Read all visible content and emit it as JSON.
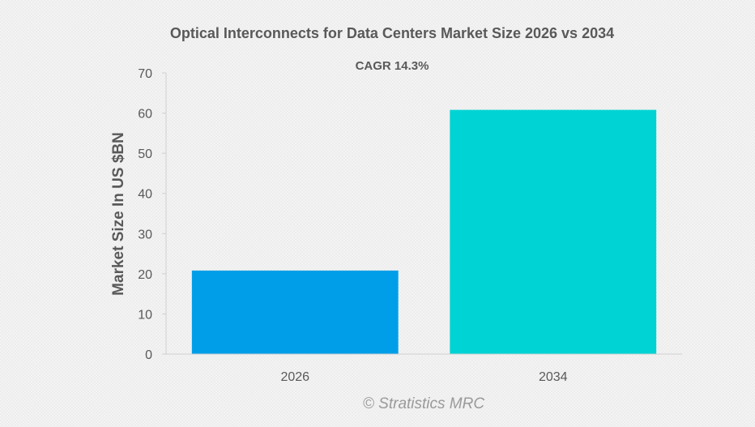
{
  "chart_data": {
    "type": "bar",
    "title": "Optical Interconnects for Data Centers Market Size 2026 vs 2034",
    "subtitle": "CAGR 14.3%",
    "ylabel": "Market Size In US $BN",
    "xlabel": "",
    "categories": [
      "2026",
      "2034"
    ],
    "values": [
      20.8,
      60.8
    ],
    "ylim": [
      0,
      70
    ],
    "yticks": [
      0,
      10,
      20,
      30,
      40,
      50,
      60,
      70
    ],
    "colors": [
      "#009ee8",
      "#00d3d3"
    ],
    "grid": false,
    "legend": "none"
  },
  "credit": "© Stratistics MRC"
}
